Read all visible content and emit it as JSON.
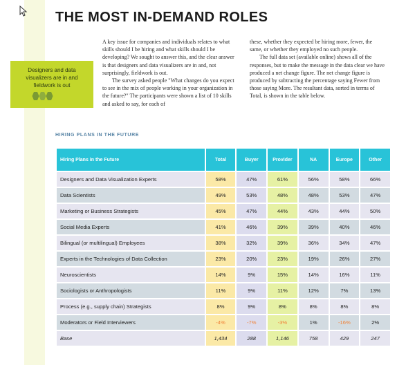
{
  "title": "THE MOST IN-DEMAND ROLES",
  "sidebar": {
    "callout": "Designers and data visualizers are in and fieldwork is out"
  },
  "body": {
    "col1": [
      "A key issue for companies and individuals relates to what skills should I be hiring and what skills should I be developing? We sought to answer this, and the clear answer is that designers and data visualizers are in and, not surprisingly, fieldwork is out.",
      "The survey asked people \"What changes do you expect to see in the mix of people working in your organization in the future?\" The participants were shown a list of 10 skills and asked to say, for each of"
    ],
    "col2": [
      "these, whether they expected be hiring more, fewer, the same, or whether they employed no such people.",
      "The full data set (available online) shows all of the responses, but to make the message in the data clear we have produced a net change figure. The net change figure is produced by subtracting the percentage saying Fewer from those saying More. The resultant data, sorted in terms of Total, is shown in the table below."
    ]
  },
  "section_label": "HIRING PLANS IN THE FUTURE",
  "colors": {
    "header": "#28c3d8",
    "total": "#fbe9a7",
    "buyer": "#dcdcee",
    "provider": "#e6f1a4",
    "negative": "#f0833a",
    "sidebar": "#c3d72b"
  },
  "table": {
    "headers": [
      "Hiring Plans in the Future",
      "Total",
      "Buyer",
      "Provider",
      "NA",
      "Europe",
      "Other"
    ],
    "rows": [
      [
        "Designers and Data Visualization Experts",
        "58%",
        "47%",
        "61%",
        "56%",
        "58%",
        "66%"
      ],
      [
        "Data Scientists",
        "49%",
        "53%",
        "48%",
        "48%",
        "53%",
        "47%"
      ],
      [
        "Marketing or Business Strategists",
        "45%",
        "47%",
        "44%",
        "43%",
        "44%",
        "50%"
      ],
      [
        "Social Media Experts",
        "41%",
        "46%",
        "39%",
        "39%",
        "40%",
        "46%"
      ],
      [
        "Bilingual (or multilingual) Employees",
        "38%",
        "32%",
        "39%",
        "36%",
        "34%",
        "47%"
      ],
      [
        "Experts in the Technologies of Data Collection",
        "23%",
        "20%",
        "23%",
        "19%",
        "26%",
        "27%"
      ],
      [
        "Neuroscientists",
        "14%",
        "9%",
        "15%",
        "14%",
        "16%",
        "11%"
      ],
      [
        "Sociologists or Anthropologists",
        "11%",
        "9%",
        "11%",
        "12%",
        "7%",
        "13%"
      ],
      [
        "Process (e.g., supply chain) Strategists",
        "8%",
        "9%",
        "8%",
        "8%",
        "8%",
        "8%"
      ],
      [
        "Moderators or Field Interviewers",
        "-4%",
        "-7%",
        "-3%",
        "1%",
        "-16%",
        "2%"
      ],
      [
        "Base",
        "1,434",
        "288",
        "1,146",
        "758",
        "429",
        "247"
      ]
    ]
  }
}
